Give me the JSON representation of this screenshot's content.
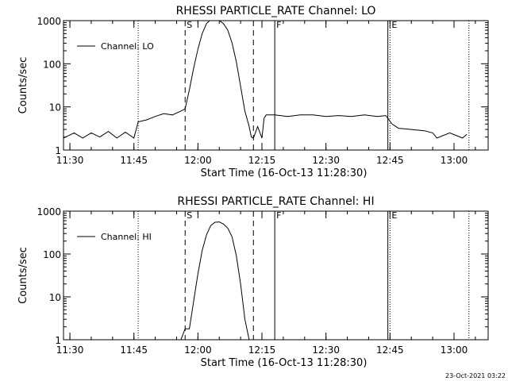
{
  "footer": {
    "timestamp": "23-Oct-2021 03:22"
  },
  "chart_data": [
    {
      "type": "line",
      "title": "RHESSI PARTICLE_RATE Channel: LO",
      "xlabel": "Start Time (16-Oct-13 11:28:30)",
      "ylabel": "Counts/sec",
      "y_scale": "log",
      "ylim": [
        1,
        1000
      ],
      "xlim": [
        "11:28:30",
        "13:08:00"
      ],
      "x_ticks": [
        "11:30",
        "11:45",
        "12:00",
        "12:15",
        "12:30",
        "12:45",
        "13:00"
      ],
      "y_ticks": [
        "1",
        "10",
        "100",
        "1000"
      ],
      "legend": {
        "position": "top-left",
        "entries": [
          "Channel: LO"
        ]
      },
      "series": [
        {
          "name": "Channel: LO",
          "x": [
            "11:28:30",
            "11:31:00",
            "11:33:00",
            "11:35:00",
            "11:37:00",
            "11:39:00",
            "11:41:00",
            "11:43:00",
            "11:45:00",
            "11:46:00",
            "11:48:00",
            "11:50:00",
            "11:52:00",
            "11:54:00",
            "11:56:00",
            "11:57:00",
            "11:58:00",
            "11:59:00",
            "12:00:00",
            "12:01:00",
            "12:02:00",
            "12:03:00",
            "12:04:00",
            "12:05:00",
            "12:06:00",
            "12:07:00",
            "12:08:00",
            "12:09:00",
            "12:10:00",
            "12:11:00",
            "12:12:00",
            "12:12:30",
            "12:13:00",
            "12:14:00",
            "12:15:00",
            "12:15:30",
            "12:16:00",
            "12:18:00",
            "12:21:00",
            "12:24:00",
            "12:27:00",
            "12:30:00",
            "12:33:00",
            "12:36:00",
            "12:39:00",
            "12:42:00",
            "12:44:00",
            "12:45:30",
            "12:47:00",
            "12:50:00",
            "12:53:00",
            "12:55:00",
            "12:56:00",
            "12:59:00",
            "13:02:00",
            "13:03:00"
          ],
          "y": [
            1.9,
            2.5,
            1.9,
            2.5,
            2.0,
            2.7,
            1.9,
            2.6,
            1.9,
            4.5,
            5.0,
            6.0,
            7.0,
            6.5,
            8.0,
            9.0,
            25,
            80,
            220,
            500,
            850,
            1050,
            1100,
            1000,
            850,
            600,
            300,
            110,
            30,
            8,
            3.5,
            2.0,
            1.9,
            3.5,
            1.9,
            5.5,
            6.5,
            6.5,
            6.0,
            6.5,
            6.5,
            6.0,
            6.3,
            6.0,
            6.5,
            6.0,
            6.3,
            4.0,
            3.2,
            3.0,
            2.8,
            2.5,
            1.9,
            2.5,
            1.9,
            2.3
          ]
        }
      ],
      "vertical_markers": [
        {
          "x": "11:46:00",
          "style": "dotted",
          "label": ""
        },
        {
          "x": "11:57:00",
          "style": "dashed",
          "label": "S"
        },
        {
          "x": "12:13:00",
          "style": "dashed",
          "label": ""
        },
        {
          "x": "12:18:00",
          "style": "solid",
          "label": "F"
        },
        {
          "x": "12:44:30",
          "style": "solid",
          "label": ""
        },
        {
          "x": "12:45:00",
          "style": "dotted",
          "label": "E"
        },
        {
          "x": "13:03:30",
          "style": "dotted",
          "label": ""
        }
      ]
    },
    {
      "type": "line",
      "title": "RHESSI PARTICLE_RATE Channel: HI",
      "xlabel": "Start Time (16-Oct-13 11:28:30)",
      "ylabel": "Counts/sec",
      "y_scale": "log",
      "ylim": [
        1,
        1000
      ],
      "xlim": [
        "11:28:30",
        "13:08:00"
      ],
      "x_ticks": [
        "11:30",
        "11:45",
        "12:00",
        "12:15",
        "12:30",
        "12:45",
        "13:00"
      ],
      "y_ticks": [
        "1",
        "10",
        "100",
        "1000"
      ],
      "legend": {
        "position": "top-left",
        "entries": [
          "Channel: HI"
        ]
      },
      "series": [
        {
          "name": "Channel: HI",
          "x": [
            "11:56:00",
            "11:57:00",
            "11:58:00",
            "11:59:00",
            "12:00:00",
            "12:01:00",
            "12:02:00",
            "12:03:00",
            "12:04:00",
            "12:05:00",
            "12:06:00",
            "12:07:00",
            "12:08:00",
            "12:09:00",
            "12:10:00",
            "12:11:00",
            "12:12:00"
          ],
          "y": [
            1.0,
            1.8,
            1.8,
            8,
            35,
            120,
            280,
            460,
            550,
            560,
            500,
            400,
            250,
            90,
            20,
            3,
            1.0
          ]
        }
      ],
      "vertical_markers": [
        {
          "x": "11:46:00",
          "style": "dotted",
          "label": ""
        },
        {
          "x": "11:57:00",
          "style": "dashed",
          "label": "S"
        },
        {
          "x": "12:13:00",
          "style": "dashed",
          "label": ""
        },
        {
          "x": "12:18:00",
          "style": "solid",
          "label": "F"
        },
        {
          "x": "12:44:30",
          "style": "solid",
          "label": ""
        },
        {
          "x": "12:45:00",
          "style": "dotted",
          "label": "E"
        },
        {
          "x": "13:03:30",
          "style": "dotted",
          "label": ""
        }
      ]
    }
  ]
}
